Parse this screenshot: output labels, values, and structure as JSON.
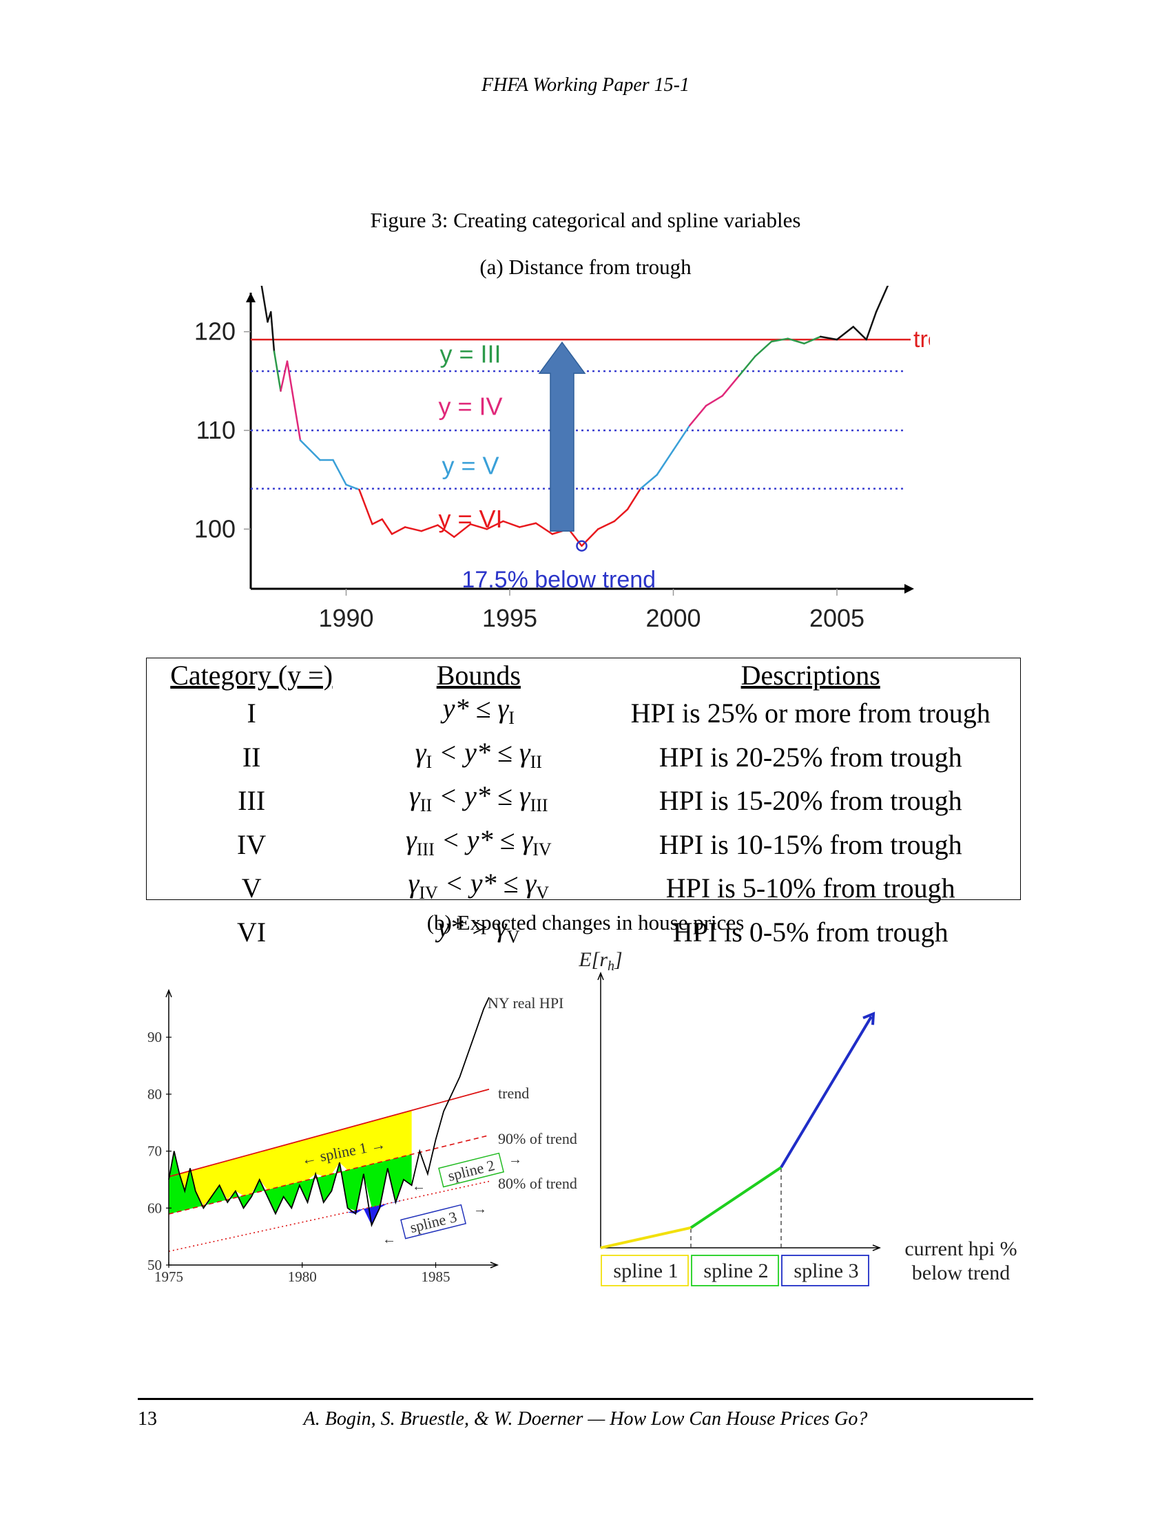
{
  "header": "FHFA Working Paper 15-1",
  "figure": {
    "title": "Figure 3: Creating categorical and spline variables",
    "panel_a_title": "(a) Distance from trough",
    "panel_b_title": "(b) Expected changes in house prices"
  },
  "chart_data": [
    {
      "type": "line",
      "panel": "a",
      "x_ticks": [
        "1990",
        "1995",
        "2000",
        "2005"
      ],
      "y_ticks": [
        "100",
        "110",
        "120"
      ],
      "xlim": [
        1987,
        2007
      ],
      "ylim": [
        95,
        125
      ],
      "trend_value": 119.2,
      "trend_label": "trend",
      "thresholds": [
        116,
        110,
        104.1
      ],
      "region_labels": [
        "y = III",
        "y = IV",
        "y = V",
        "y = VI"
      ],
      "annotation": "17.5% below trend",
      "trough": {
        "x": 1997.2,
        "y": 98.3
      },
      "series": [
        {
          "x": [
            1987.4,
            1987.6,
            1987.7,
            1987.8,
            1988.0,
            1988.2,
            1988.4,
            1988.6,
            1988.9,
            1989.2,
            1989.6,
            1990.0,
            1990.4,
            1990.8,
            1991.1,
            1991.4,
            1991.8,
            1992.3,
            1992.8,
            1993.3,
            1993.8,
            1994.3,
            1994.8,
            1995.3,
            1995.8,
            1996.3,
            1996.8,
            1997.2,
            1997.7,
            1998.2,
            1998.6,
            1999.0,
            1999.5,
            2000.0,
            2000.5,
            2001.0,
            2001.5,
            2002.0,
            2002.5,
            2003.0,
            2003.5,
            2004.0,
            2004.5,
            2005.0,
            2005.5,
            2005.9,
            2006.2,
            2006.6
          ],
          "y": [
            125,
            121,
            122,
            118,
            114,
            117,
            113,
            109,
            108,
            107,
            107,
            104.5,
            104,
            100.5,
            101,
            99.5,
            100.2,
            99.8,
            100.4,
            99.2,
            100.5,
            100,
            100.8,
            100.2,
            100.6,
            99.5,
            100,
            98.3,
            100,
            100.8,
            102,
            104.1,
            105.5,
            108,
            110.5,
            112.5,
            113.5,
            115.5,
            117.5,
            119,
            119.3,
            118.8,
            119.5,
            119.2,
            120.5,
            119.2,
            122,
            125
          ]
        }
      ]
    },
    {
      "type": "line",
      "panel": "b-left",
      "x_ticks": [
        "1975",
        "1980",
        "1985"
      ],
      "y_ticks": [
        "50",
        "60",
        "70",
        "80",
        "90"
      ],
      "xlim": [
        1975,
        1987
      ],
      "ylim": [
        50,
        98
      ],
      "series_labels": [
        "NY real HPI",
        "trend",
        "90% of trend",
        "80% of trend"
      ],
      "region_labels": [
        "← spline 1 →",
        "← spline 2 →",
        "← spline 3 →"
      ],
      "trend": {
        "x": [
          1975,
          1985
        ],
        "y": [
          65.5,
          78.3
        ]
      },
      "series": [
        {
          "name": "NY real HPI",
          "x": [
            1975.0,
            1975.2,
            1975.4,
            1975.6,
            1975.8,
            1976.0,
            1976.3,
            1976.6,
            1976.9,
            1977.2,
            1977.5,
            1977.8,
            1978.1,
            1978.4,
            1978.7,
            1979.0,
            1979.3,
            1979.6,
            1979.9,
            1980.2,
            1980.5,
            1980.8,
            1981.1,
            1981.4,
            1981.7,
            1982.0,
            1982.3,
            1982.6,
            1982.9,
            1983.2,
            1983.5,
            1983.8,
            1984.1,
            1984.4,
            1984.7,
            1985.0,
            1985.3,
            1985.6,
            1985.9,
            1986.2,
            1986.5,
            1986.8,
            1987.0
          ],
          "y": [
            65,
            70,
            66,
            63,
            67,
            63,
            60,
            62,
            64,
            61,
            63,
            60,
            62,
            65,
            62,
            59,
            62,
            60,
            64,
            61,
            66,
            61,
            63,
            68,
            60,
            59,
            66,
            57,
            60,
            67,
            61,
            65,
            64,
            70,
            66,
            72,
            77,
            80,
            83,
            87,
            91,
            95,
            97
          ]
        }
      ]
    },
    {
      "type": "line",
      "panel": "b-right",
      "ylabel": "E[r_h]",
      "xlabel_lines": [
        "current hpi %",
        "below trend"
      ],
      "segments": [
        {
          "name": "spline 1",
          "color": "#f2e00c",
          "x": [
            0,
            1
          ],
          "y": [
            0,
            0.4
          ]
        },
        {
          "name": "spline 2",
          "color": "#1ecf1e",
          "x": [
            1,
            2
          ],
          "y": [
            0.4,
            1.6
          ]
        },
        {
          "name": "spline 3",
          "color": "#1f2dc7",
          "x": [
            2,
            3
          ],
          "y": [
            1.6,
            4.6
          ]
        }
      ],
      "spline_labels": [
        "spline 1",
        "spline 2",
        "spline 3"
      ]
    }
  ],
  "category_table": {
    "headers": [
      "Category (y =)",
      "Bounds",
      "Descriptions"
    ],
    "rows": [
      {
        "category": "I",
        "bound_a": "y* ≤ γ",
        "bound_a_sub": "I",
        "description": "HPI is 25% or more from trough"
      },
      {
        "category": "II",
        "bound_a": "γ",
        "bound_a_sub": "I",
        "bound_b": " < y* ≤ γ",
        "bound_b_sub": "II",
        "description": "HPI is 20-25% from trough"
      },
      {
        "category": "III",
        "bound_a": "γ",
        "bound_a_sub": "II",
        "bound_b": " < y* ≤ γ",
        "bound_b_sub": "III",
        "description": "HPI is 15-20% from trough"
      },
      {
        "category": "IV",
        "bound_a": "γ",
        "bound_a_sub": "III",
        "bound_b": " < y* ≤ γ",
        "bound_b_sub": "IV",
        "description": "HPI is 10-15% from trough"
      },
      {
        "category": "V",
        "bound_a": "γ",
        "bound_a_sub": "IV",
        "bound_b": " < y* ≤ γ",
        "bound_b_sub": "V",
        "description": "HPI is 5-10% from trough"
      },
      {
        "category": "VI",
        "bound_a": "y* > γ",
        "bound_a_sub": "V",
        "description": "HPI is 0-5% from trough"
      }
    ]
  },
  "footer": {
    "page_number": "13",
    "text": "A. Bogin, S. Bruestle, & W. Doerner — How Low Can House Prices Go?"
  }
}
